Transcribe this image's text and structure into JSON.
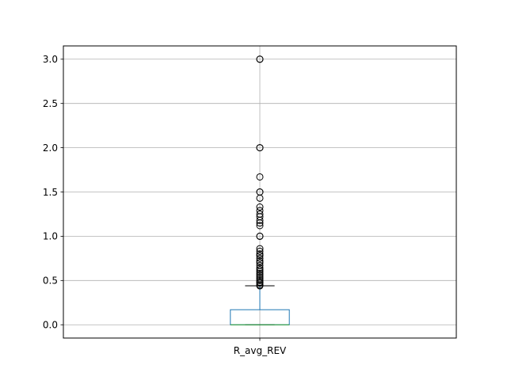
{
  "chart_data": {
    "type": "box",
    "title": "",
    "xlabel": "",
    "ylabel": "",
    "categories": [
      "R_avg_REV"
    ],
    "ylim": [
      -0.15,
      3.15
    ],
    "yticks": [
      0.0,
      0.5,
      1.0,
      1.5,
      2.0,
      2.5,
      3.0
    ],
    "ytick_labels": [
      "0.0",
      "0.5",
      "1.0",
      "1.5",
      "2.0",
      "2.5",
      "3.0"
    ],
    "grid": true,
    "boxes": [
      {
        "name": "R_avg_REV",
        "whisker_low": 0.0,
        "q1": 0.0,
        "median": 0.0,
        "q3": 0.17,
        "whisker_high": 0.44,
        "outliers": [
          0.44,
          0.45,
          0.47,
          0.48,
          0.5,
          0.52,
          0.54,
          0.56,
          0.58,
          0.6,
          0.62,
          0.64,
          0.67,
          0.7,
          0.72,
          0.75,
          0.78,
          0.8,
          0.83,
          0.86,
          1.0,
          1.0,
          1.12,
          1.15,
          1.18,
          1.22,
          1.25,
          1.29,
          1.33,
          1.43,
          1.5,
          1.5,
          1.67,
          2.0,
          2.0,
          3.0,
          3.0
        ]
      }
    ],
    "colors": {
      "box": "#1f77b4",
      "median": "#2ca02c",
      "whisker": "#1f77b4",
      "cap": "#000000",
      "flier": "#000000",
      "grid": "#b0b0b0",
      "axes": "#000000"
    }
  }
}
